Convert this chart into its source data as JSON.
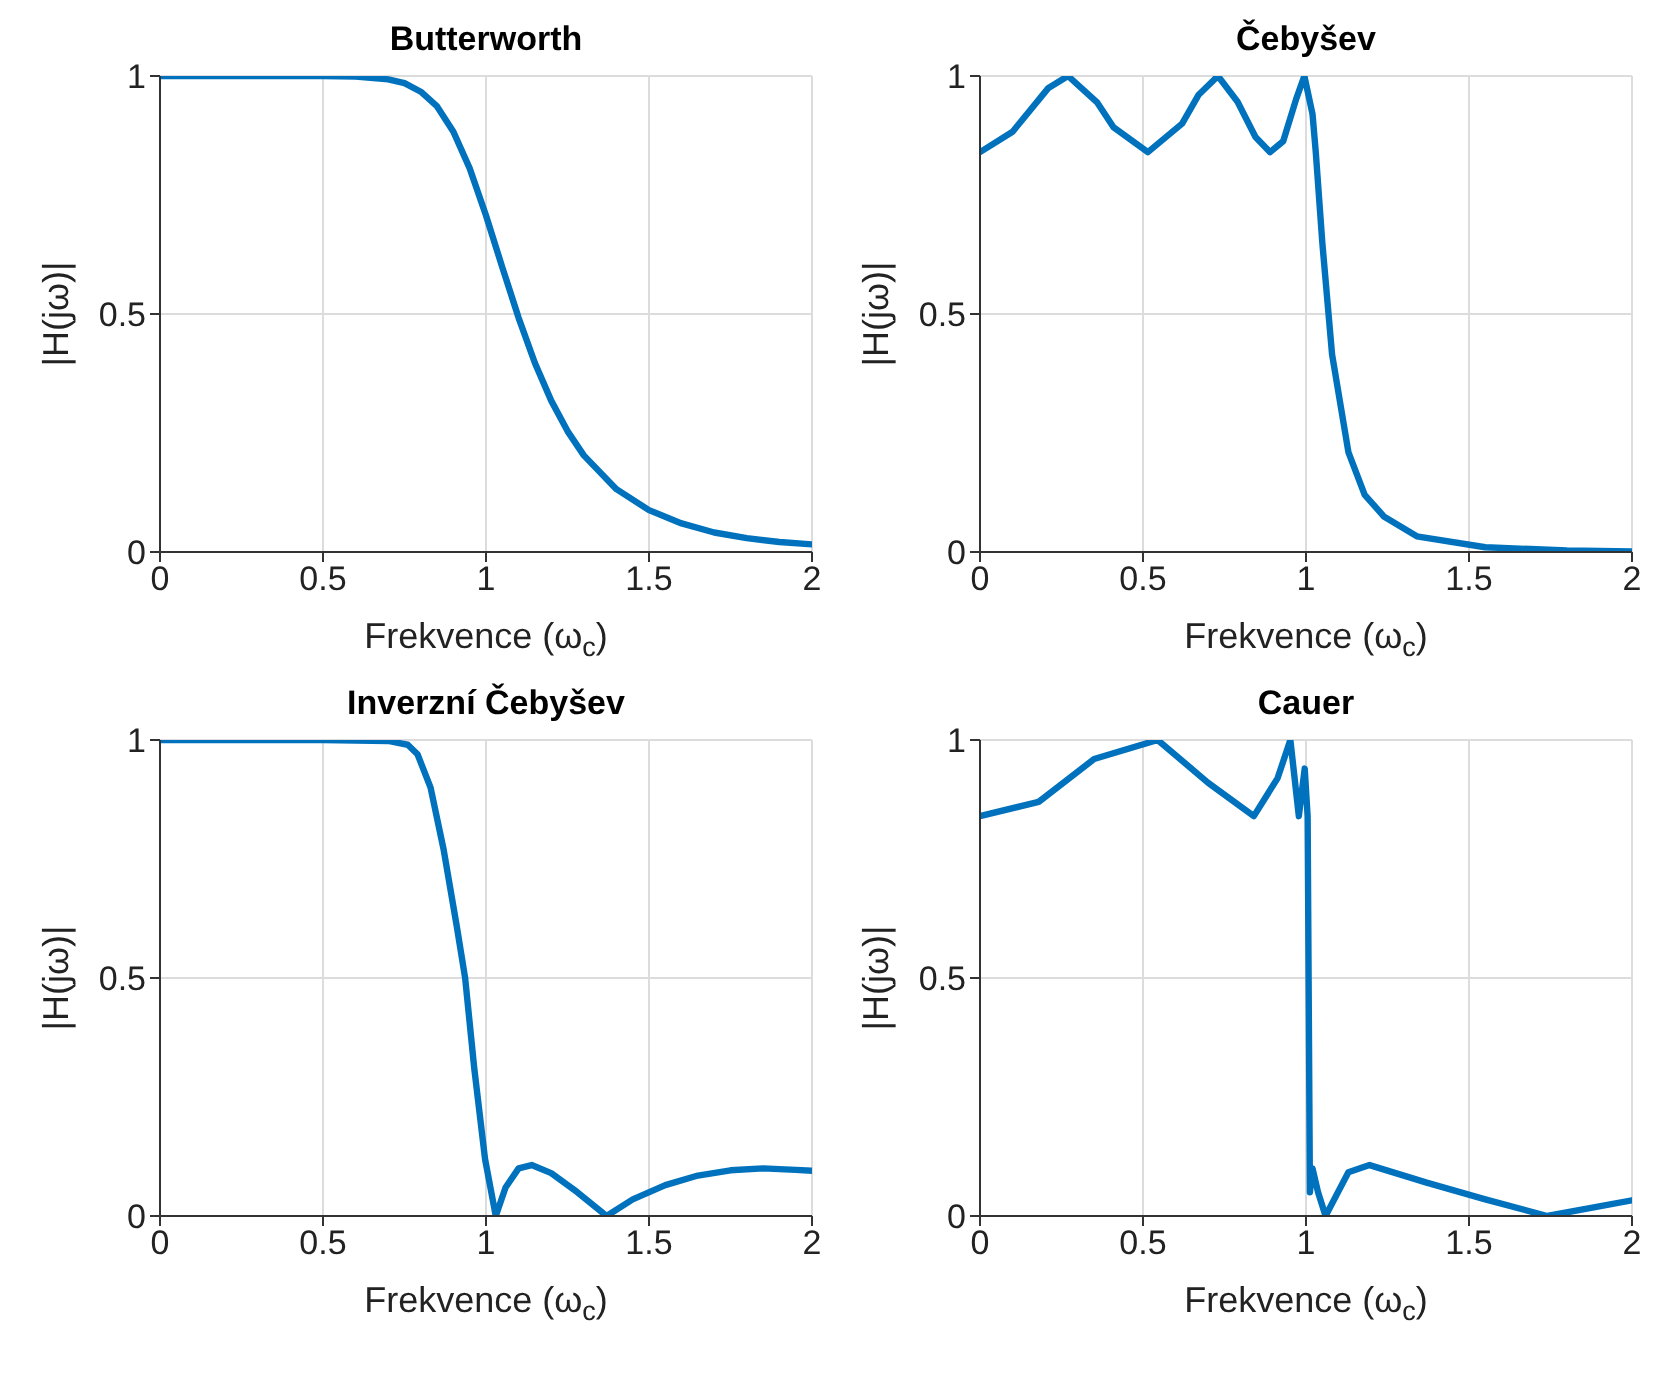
{
  "chart_data": [
    {
      "type": "line",
      "title": "Butterworth",
      "xlabel": "Frekvence (ω$_{c}$)",
      "ylabel": "|H(jω)|",
      "xlim": [
        0,
        2
      ],
      "xticks": [
        0,
        0.5,
        1,
        1.5,
        2
      ],
      "ylim": [
        0,
        1
      ],
      "yticks": [
        0,
        0.5,
        1
      ],
      "grid": true,
      "line_style": "solid",
      "x": [
        0,
        0.2,
        0.4,
        0.5,
        0.6,
        0.7,
        0.75,
        0.8,
        0.85,
        0.9,
        0.95,
        1.0,
        1.05,
        1.1,
        1.15,
        1.2,
        1.25,
        1.3,
        1.4,
        1.5,
        1.6,
        1.7,
        1.8,
        1.9,
        2.0
      ],
      "series": [
        {
          "color": "#0072bd",
          "values": [
            1,
            1,
            1,
            1,
            0.999,
            0.993,
            0.985,
            0.967,
            0.936,
            0.883,
            0.806,
            0.707,
            0.598,
            0.492,
            0.397,
            0.318,
            0.254,
            0.203,
            0.132,
            0.088,
            0.06,
            0.041,
            0.029,
            0.021,
            0.016
          ]
        }
      ]
    },
    {
      "type": "line",
      "title": "Čebyšev",
      "xlabel": "Frekvence (ω$_{c}$)",
      "ylabel": "|H(jω)|",
      "xlim": [
        0,
        2
      ],
      "xticks": [
        0,
        0.5,
        1,
        1.5,
        2
      ],
      "ylim": [
        0,
        1
      ],
      "yticks": [
        0,
        0.5,
        1
      ],
      "grid": true,
      "line_style": "solid",
      "x": [
        0,
        0.1,
        0.21,
        0.27,
        0.36,
        0.41,
        0.515,
        0.62,
        0.67,
        0.73,
        0.79,
        0.845,
        0.89,
        0.93,
        0.97,
        0.995,
        1.02,
        1.03,
        1.05,
        1.08,
        1.13,
        1.18,
        1.24,
        1.34,
        1.55,
        1.8,
        2
      ],
      "series": [
        {
          "color": "#0072bd",
          "values": [
            0.84,
            0.883,
            0.975,
            1,
            0.944,
            0.892,
            0.84,
            0.9,
            0.96,
            1,
            0.946,
            0.872,
            0.84,
            0.863,
            0.952,
            1,
            0.92,
            0.84,
            0.65,
            0.415,
            0.21,
            0.12,
            0.074,
            0.033,
            0.01,
            0.003,
            0.001
          ]
        }
      ]
    },
    {
      "type": "line",
      "title": "Inverzní Čebyšev",
      "xlabel": "Frekvence (ω$_{c}$)",
      "ylabel": "|H(jω)|",
      "xlim": [
        0,
        2
      ],
      "xticks": [
        0,
        0.5,
        1,
        1.5,
        2
      ],
      "ylim": [
        0,
        1
      ],
      "yticks": [
        0,
        0.5,
        1
      ],
      "grid": true,
      "line_style": "solid",
      "x": [
        0,
        0.5,
        0.7,
        0.76,
        0.79,
        0.83,
        0.87,
        0.91,
        0.936,
        0.964,
        0.997,
        1.03,
        1.06,
        1.1,
        1.14,
        1.2,
        1.28,
        1.37,
        1.45,
        1.55,
        1.65,
        1.75,
        1.85,
        1.95,
        2
      ],
      "series": [
        {
          "color": "#0072bd",
          "values": [
            1,
            1,
            0.998,
            0.99,
            0.97,
            0.9,
            0.77,
            0.61,
            0.5,
            0.31,
            0.12,
            0,
            0.06,
            0.1,
            0.107,
            0.09,
            0.05,
            0,
            0.035,
            0.065,
            0.085,
            0.096,
            0.1,
            0.097,
            0.095
          ]
        }
      ]
    },
    {
      "type": "line",
      "title": "Cauer",
      "xlabel": "Frekvence (ω$_{c}$)",
      "ylabel": "|H(jω)|",
      "xlim": [
        0,
        2
      ],
      "xticks": [
        0,
        0.5,
        1,
        1.5,
        2
      ],
      "ylim": [
        0,
        1
      ],
      "yticks": [
        0,
        0.5,
        1
      ],
      "grid": true,
      "line_style": "solid",
      "x": [
        0,
        0.18,
        0.35,
        0.545,
        0.7,
        0.84,
        0.913,
        0.952,
        0.978,
        0.996,
        1.005,
        1.012,
        1.02,
        1.037,
        1.06,
        1.13,
        1.195,
        1.37,
        1.55,
        1.74,
        2
      ],
      "series": [
        {
          "color": "#0072bd",
          "values": [
            0.84,
            0.87,
            0.96,
            1,
            0.91,
            0.84,
            0.92,
            1,
            0.84,
            0.94,
            0.84,
            0.05,
            0.1,
            0.05,
            0,
            0.092,
            0.107,
            0.07,
            0.035,
            0,
            0.033
          ]
        }
      ]
    }
  ]
}
